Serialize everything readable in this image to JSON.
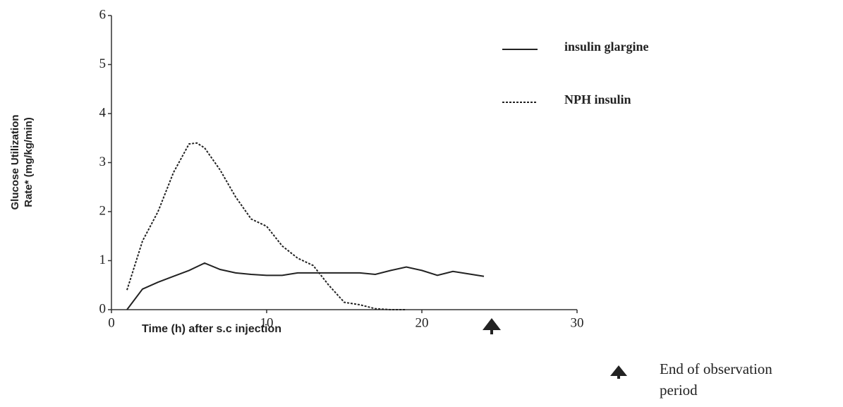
{
  "chart_data": {
    "type": "line",
    "xlabel": "Time (h) after s.c injection",
    "ylabel": [
      "Glucose Utilization",
      "Rate* (mg/kg/min)"
    ],
    "xlim": [
      0,
      30
    ],
    "ylim": [
      0,
      6
    ],
    "xticks": [
      0,
      10,
      20,
      30
    ],
    "yticks": [
      0,
      1,
      2,
      3,
      4,
      5,
      6
    ],
    "legend": "upper right",
    "series": [
      {
        "name": "insulin glargine",
        "color": "#222222",
        "dashed": false,
        "x": [
          1,
          2,
          3,
          4,
          5,
          6,
          7,
          8,
          9,
          10,
          11,
          12,
          13,
          14,
          15,
          16,
          17,
          18,
          19,
          20,
          21,
          22,
          23,
          24
        ],
        "values": [
          0,
          0.42,
          0.56,
          0.68,
          0.8,
          0.95,
          0.82,
          0.75,
          0.72,
          0.7,
          0.7,
          0.75,
          0.75,
          0.75,
          0.75,
          0.75,
          0.72,
          0.8,
          0.87,
          0.8,
          0.7,
          0.78,
          0.73,
          0.68
        ]
      },
      {
        "name": "NPH insulin",
        "color": "#222222",
        "dashed": true,
        "x": [
          1,
          2,
          3,
          4,
          5,
          5.5,
          6,
          7,
          8,
          9,
          10,
          11,
          12,
          13,
          14,
          15,
          16,
          17,
          18,
          19
        ],
        "values": [
          0.4,
          1.4,
          2.0,
          2.8,
          3.38,
          3.4,
          3.3,
          2.85,
          2.3,
          1.85,
          1.7,
          1.3,
          1.05,
          0.9,
          0.5,
          0.15,
          0.1,
          0.02,
          0,
          0
        ]
      }
    ],
    "annotation": {
      "x": 24.5,
      "text": [
        "End of observation",
        "period"
      ]
    }
  }
}
